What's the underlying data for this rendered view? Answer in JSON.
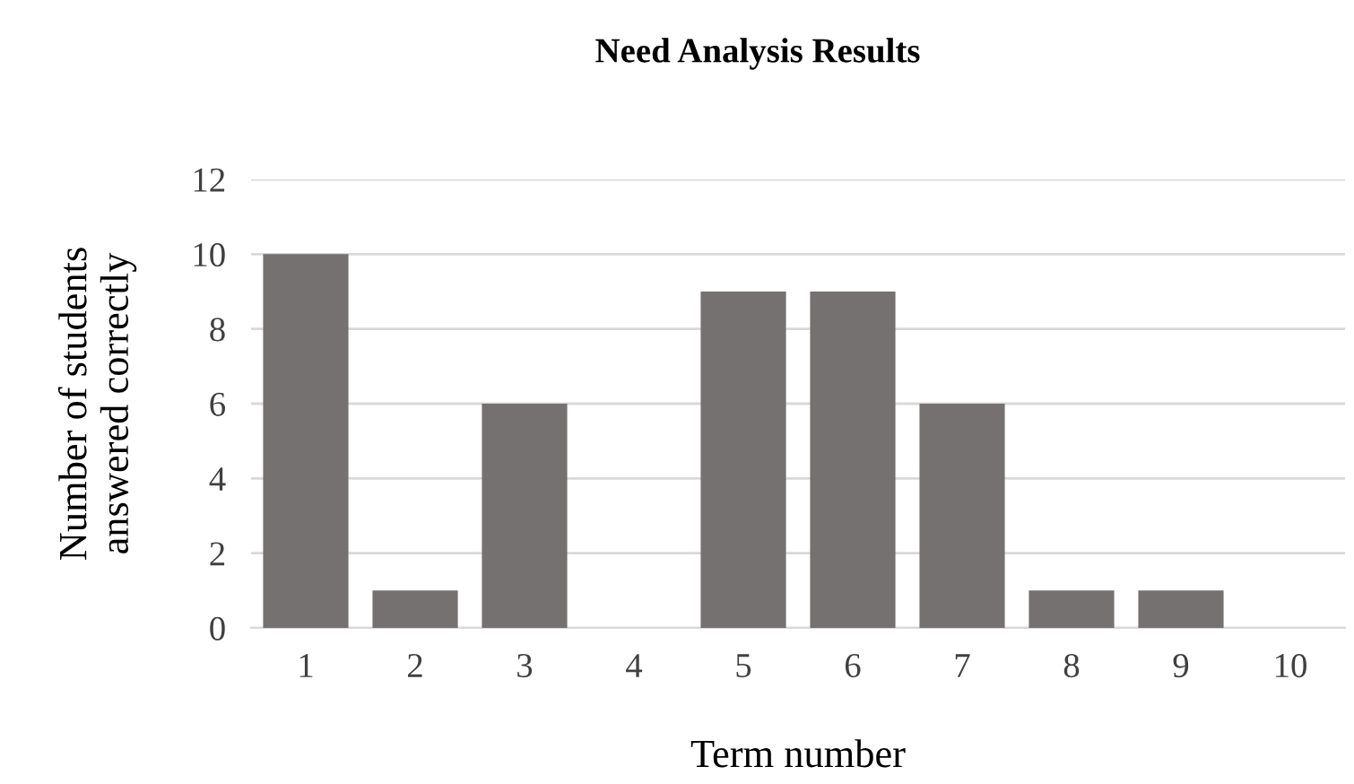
{
  "chart_data": {
    "type": "bar",
    "title": "Need Analysis Results",
    "xlabel": "Term number",
    "ylabel": "Number of students\nanswered correctly",
    "categories": [
      "1",
      "2",
      "3",
      "4",
      "5",
      "6",
      "7",
      "8",
      "9",
      "10"
    ],
    "values": [
      10,
      1,
      6,
      0,
      9,
      9,
      6,
      1,
      1,
      0
    ],
    "color": "#767171",
    "ylim": [
      0,
      12
    ],
    "yticks": [
      0,
      2,
      4,
      6,
      8,
      10,
      12
    ],
    "grid": "y"
  }
}
